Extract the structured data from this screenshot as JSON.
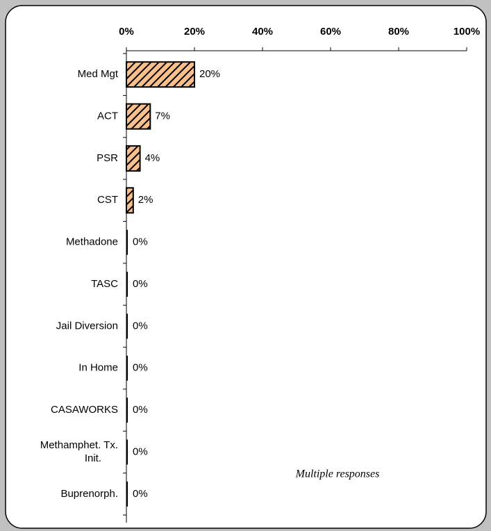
{
  "chart_data": {
    "type": "bar",
    "orientation": "horizontal",
    "categories": [
      "Med Mgt",
      "ACT",
      "PSR",
      "CST",
      "Methadone",
      "TASC",
      "Jail Diversion",
      "In Home",
      "CASAWORKS",
      "Methamphet. Tx.\nInit.",
      "Buprenorph."
    ],
    "values": [
      20,
      7,
      4,
      2,
      0,
      0,
      0,
      0,
      0,
      0,
      0
    ],
    "value_labels": [
      "20%",
      "7%",
      "4%",
      "2%",
      "0%",
      "0%",
      "0%",
      "0%",
      "0%",
      "0%",
      "0%"
    ],
    "color": "#f9c08c",
    "xlim": [
      0,
      100
    ],
    "xticks": [
      {
        "value": 0,
        "label": "0%"
      },
      {
        "value": 20,
        "label": "20%"
      },
      {
        "value": 40,
        "label": "40%"
      },
      {
        "value": 60,
        "label": "60%"
      },
      {
        "value": 80,
        "label": "80%"
      },
      {
        "value": 100,
        "label": "100%"
      }
    ],
    "annotation": "Multiple responses"
  }
}
